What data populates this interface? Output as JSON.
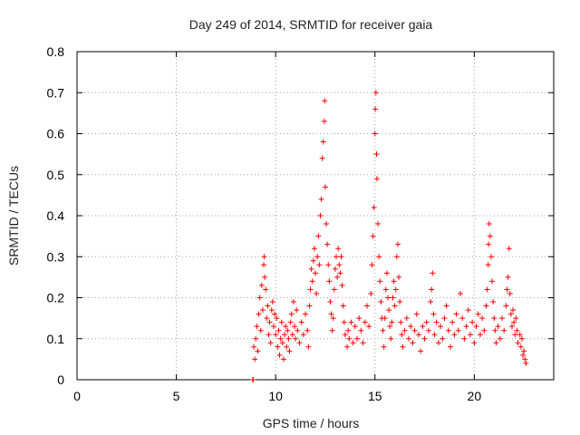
{
  "chart_data": {
    "type": "scatter",
    "title": "Day 249 of 2014, SRMTID for receiver gaia",
    "xlabel": "GPS time / hours",
    "ylabel": "SRMTID / TECUs",
    "xlim": [
      0,
      24
    ],
    "ylim": [
      0,
      0.8
    ],
    "grid": true,
    "xticks": [
      0,
      5,
      10,
      15,
      20
    ],
    "xtick_labels": [
      "0",
      "5",
      "10",
      "15",
      "20"
    ],
    "yticks": [
      0,
      0.1,
      0.2,
      0.3,
      0.4,
      0.5,
      0.6,
      0.7,
      0.8
    ],
    "ytick_labels": [
      "0",
      "0.1",
      "0.2",
      "0.3",
      "0.4",
      "0.5",
      "0.6",
      "0.7",
      "0.8"
    ],
    "marker": "plus",
    "series": [
      {
        "name": "SRMTID",
        "color": "#ff0000",
        "points": [
          [
            8.85,
            0.0
          ],
          [
            8.87,
            0.0
          ],
          [
            8.9,
            0.08
          ],
          [
            8.95,
            0.05
          ],
          [
            9.0,
            0.1
          ],
          [
            9.05,
            0.13
          ],
          [
            9.1,
            0.07
          ],
          [
            9.15,
            0.16
          ],
          [
            9.2,
            0.2
          ],
          [
            9.25,
            0.12
          ],
          [
            9.3,
            0.23
          ],
          [
            9.35,
            0.17
          ],
          [
            9.4,
            0.28
          ],
          [
            9.42,
            0.3
          ],
          [
            9.45,
            0.25
          ],
          [
            9.5,
            0.22
          ],
          [
            9.55,
            0.15
          ],
          [
            9.6,
            0.18
          ],
          [
            9.65,
            0.11
          ],
          [
            9.7,
            0.14
          ],
          [
            9.75,
            0.09
          ],
          [
            9.8,
            0.17
          ],
          [
            9.85,
            0.19
          ],
          [
            9.9,
            0.13
          ],
          [
            9.95,
            0.16
          ],
          [
            10.0,
            0.11
          ],
          [
            10.05,
            0.15
          ],
          [
            10.1,
            0.08
          ],
          [
            10.15,
            0.12
          ],
          [
            10.2,
            0.06
          ],
          [
            10.25,
            0.1
          ],
          [
            10.3,
            0.14
          ],
          [
            10.35,
            0.09
          ],
          [
            10.4,
            0.05
          ],
          [
            10.45,
            0.11
          ],
          [
            10.5,
            0.13
          ],
          [
            10.55,
            0.08
          ],
          [
            10.6,
            0.12
          ],
          [
            10.65,
            0.1
          ],
          [
            10.7,
            0.07
          ],
          [
            10.75,
            0.14
          ],
          [
            10.8,
            0.16
          ],
          [
            10.85,
            0.11
          ],
          [
            10.9,
            0.19
          ],
          [
            10.95,
            0.13
          ],
          [
            11.0,
            0.1
          ],
          [
            11.05,
            0.17
          ],
          [
            11.1,
            0.12
          ],
          [
            11.2,
            0.09
          ],
          [
            11.3,
            0.14
          ],
          [
            11.4,
            0.11
          ],
          [
            11.5,
            0.16
          ],
          [
            11.6,
            0.12
          ],
          [
            11.65,
            0.08
          ],
          [
            11.7,
            0.18
          ],
          [
            11.75,
            0.22
          ],
          [
            11.8,
            0.27
          ],
          [
            11.85,
            0.24
          ],
          [
            11.9,
            0.29
          ],
          [
            11.95,
            0.32
          ],
          [
            12.0,
            0.26
          ],
          [
            12.05,
            0.21
          ],
          [
            12.1,
            0.3
          ],
          [
            12.15,
            0.35
          ],
          [
            12.2,
            0.28
          ],
          [
            12.25,
            0.4
          ],
          [
            12.3,
            0.44
          ],
          [
            12.35,
            0.54
          ],
          [
            12.4,
            0.58
          ],
          [
            12.45,
            0.63
          ],
          [
            12.47,
            0.68
          ],
          [
            12.5,
            0.47
          ],
          [
            12.55,
            0.38
          ],
          [
            12.6,
            0.33
          ],
          [
            12.65,
            0.28
          ],
          [
            12.7,
            0.24
          ],
          [
            12.75,
            0.19
          ],
          [
            12.8,
            0.16
          ],
          [
            12.85,
            0.12
          ],
          [
            12.9,
            0.15
          ],
          [
            12.95,
            0.22
          ],
          [
            13.0,
            0.27
          ],
          [
            13.05,
            0.3
          ],
          [
            13.1,
            0.25
          ],
          [
            13.15,
            0.32
          ],
          [
            13.2,
            0.28
          ],
          [
            13.25,
            0.26
          ],
          [
            13.3,
            0.3
          ],
          [
            13.35,
            0.23
          ],
          [
            13.4,
            0.18
          ],
          [
            13.45,
            0.14
          ],
          [
            13.5,
            0.11
          ],
          [
            13.6,
            0.08
          ],
          [
            13.65,
            0.12
          ],
          [
            13.7,
            0.1
          ],
          [
            13.8,
            0.14
          ],
          [
            13.9,
            0.09
          ],
          [
            14.0,
            0.13
          ],
          [
            14.1,
            0.1
          ],
          [
            14.2,
            0.15
          ],
          [
            14.3,
            0.12
          ],
          [
            14.4,
            0.09
          ],
          [
            14.5,
            0.14
          ],
          [
            14.6,
            0.18
          ],
          [
            14.7,
            0.13
          ],
          [
            14.8,
            0.21
          ],
          [
            14.85,
            0.28
          ],
          [
            14.9,
            0.35
          ],
          [
            14.95,
            0.42
          ],
          [
            15.0,
            0.6
          ],
          [
            15.02,
            0.66
          ],
          [
            15.05,
            0.7
          ],
          [
            15.08,
            0.55
          ],
          [
            15.1,
            0.49
          ],
          [
            15.15,
            0.38
          ],
          [
            15.2,
            0.3
          ],
          [
            15.25,
            0.24
          ],
          [
            15.3,
            0.19
          ],
          [
            15.35,
            0.15
          ],
          [
            15.4,
            0.12
          ],
          [
            15.45,
            0.08
          ],
          [
            15.5,
            0.15
          ],
          [
            15.55,
            0.22
          ],
          [
            15.6,
            0.26
          ],
          [
            15.65,
            0.2
          ],
          [
            15.7,
            0.17
          ],
          [
            15.75,
            0.13
          ],
          [
            15.8,
            0.1
          ],
          [
            15.85,
            0.14
          ],
          [
            15.9,
            0.2
          ],
          [
            15.95,
            0.24
          ],
          [
            16.0,
            0.18
          ],
          [
            16.05,
            0.22
          ],
          [
            16.1,
            0.3
          ],
          [
            16.15,
            0.33
          ],
          [
            16.2,
            0.25
          ],
          [
            16.25,
            0.19
          ],
          [
            16.3,
            0.14
          ],
          [
            16.35,
            0.11
          ],
          [
            16.4,
            0.08
          ],
          [
            16.5,
            0.12
          ],
          [
            16.6,
            0.15
          ],
          [
            16.7,
            0.1
          ],
          [
            16.8,
            0.13
          ],
          [
            16.9,
            0.09
          ],
          [
            17.0,
            0.12
          ],
          [
            17.1,
            0.16
          ],
          [
            17.2,
            0.11
          ],
          [
            17.3,
            0.07
          ],
          [
            17.4,
            0.13
          ],
          [
            17.5,
            0.1
          ],
          [
            17.6,
            0.14
          ],
          [
            17.7,
            0.12
          ],
          [
            17.8,
            0.19
          ],
          [
            17.85,
            0.22
          ],
          [
            17.9,
            0.26
          ],
          [
            17.95,
            0.16
          ],
          [
            18.0,
            0.11
          ],
          [
            18.1,
            0.14
          ],
          [
            18.2,
            0.09
          ],
          [
            18.3,
            0.13
          ],
          [
            18.4,
            0.1
          ],
          [
            18.5,
            0.15
          ],
          [
            18.6,
            0.18
          ],
          [
            18.7,
            0.12
          ],
          [
            18.8,
            0.08
          ],
          [
            18.9,
            0.14
          ],
          [
            19.0,
            0.11
          ],
          [
            19.1,
            0.16
          ],
          [
            19.2,
            0.12
          ],
          [
            19.3,
            0.21
          ],
          [
            19.4,
            0.15
          ],
          [
            19.5,
            0.1
          ],
          [
            19.6,
            0.13
          ],
          [
            19.7,
            0.17
          ],
          [
            19.8,
            0.11
          ],
          [
            19.9,
            0.14
          ],
          [
            20.0,
            0.09
          ],
          [
            20.1,
            0.13
          ],
          [
            20.2,
            0.16
          ],
          [
            20.3,
            0.11
          ],
          [
            20.4,
            0.15
          ],
          [
            20.5,
            0.12
          ],
          [
            20.6,
            0.18
          ],
          [
            20.65,
            0.22
          ],
          [
            20.7,
            0.28
          ],
          [
            20.72,
            0.33
          ],
          [
            20.75,
            0.38
          ],
          [
            20.8,
            0.35
          ],
          [
            20.85,
            0.3
          ],
          [
            20.9,
            0.24
          ],
          [
            20.95,
            0.19
          ],
          [
            21.0,
            0.15
          ],
          [
            21.05,
            0.12
          ],
          [
            21.1,
            0.09
          ],
          [
            21.2,
            0.13
          ],
          [
            21.3,
            0.1
          ],
          [
            21.4,
            0.15
          ],
          [
            21.5,
            0.12
          ],
          [
            21.6,
            0.18
          ],
          [
            21.65,
            0.22
          ],
          [
            21.7,
            0.25
          ],
          [
            21.75,
            0.32
          ],
          [
            21.8,
            0.21
          ],
          [
            21.85,
            0.16
          ],
          [
            21.9,
            0.13
          ],
          [
            21.95,
            0.17
          ],
          [
            22.0,
            0.14
          ],
          [
            22.05,
            0.11
          ],
          [
            22.1,
            0.15
          ],
          [
            22.15,
            0.12
          ],
          [
            22.2,
            0.09
          ],
          [
            22.3,
            0.11
          ],
          [
            22.35,
            0.08
          ],
          [
            22.4,
            0.1
          ],
          [
            22.45,
            0.06
          ],
          [
            22.5,
            0.07
          ],
          [
            22.55,
            0.05
          ],
          [
            22.6,
            0.04
          ]
        ]
      }
    ]
  }
}
